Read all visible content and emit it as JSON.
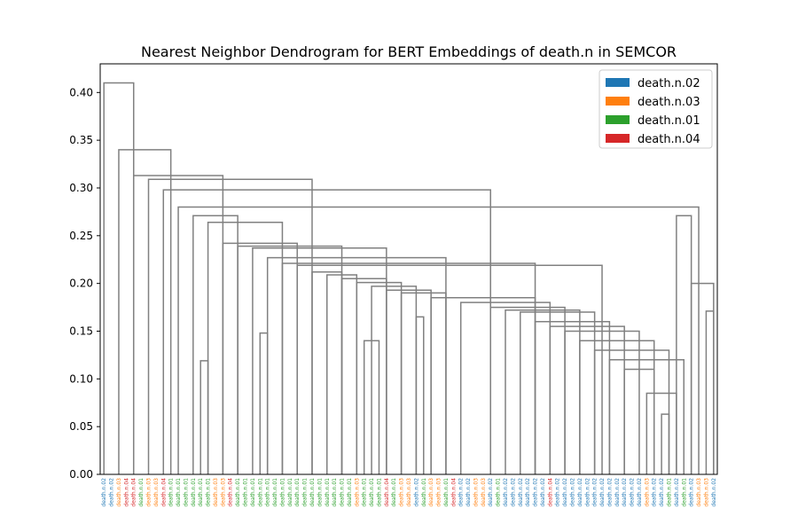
{
  "chart_data": {
    "type": "dendrogram",
    "title": "Nearest Neighbor Dendrogram for BERT Embeddings of death.n in SEMCOR",
    "xlabel": "",
    "ylabel": "",
    "ylim": [
      0,
      0.43
    ],
    "yticks": [
      "0.00",
      "0.05",
      "0.10",
      "0.15",
      "0.20",
      "0.25",
      "0.30",
      "0.35",
      "0.40"
    ],
    "ytick_values": [
      0,
      0.05,
      0.1,
      0.15,
      0.2,
      0.25,
      0.3,
      0.35,
      0.4
    ],
    "link_color": "#808080",
    "legend": {
      "placement": "top-right",
      "entries": [
        {
          "label": "death.n.02",
          "color": "#1f77b4"
        },
        {
          "label": "death.n.03",
          "color": "#ff7f0e"
        },
        {
          "label": "death.n.01",
          "color": "#2ca02c"
        },
        {
          "label": "death.n.04",
          "color": "#d62728"
        }
      ]
    },
    "leaves": [
      "death.n.02",
      "death.n.02",
      "death.n.03",
      "death.n.04",
      "death.n.04",
      "death.n.01",
      "death.n.03",
      "death.n.03",
      "death.n.04",
      "death.n.01",
      "death.n.01",
      "death.n.01",
      "death.n.01",
      "death.n.01",
      "death.n.01",
      "death.n.03",
      "death.n.03",
      "death.n.04",
      "death.n.01",
      "death.n.01",
      "death.n.01",
      "death.n.01",
      "death.n.01",
      "death.n.01",
      "death.n.01",
      "death.n.01",
      "death.n.01",
      "death.n.01",
      "death.n.01",
      "death.n.01",
      "death.n.01",
      "death.n.01",
      "death.n.01",
      "death.n.01",
      "death.n.03",
      "death.n.01",
      "death.n.01",
      "death.n.01",
      "death.n.04",
      "death.n.01",
      "death.n.03",
      "death.n.03",
      "death.n.02",
      "death.n.01",
      "death.n.03",
      "death.n.03",
      "death.n.01",
      "death.n.04",
      "death.n.02",
      "death.n.02",
      "death.n.03",
      "death.n.03",
      "death.n.02",
      "death.n.01",
      "death.n.02",
      "death.n.02",
      "death.n.02",
      "death.n.02",
      "death.n.02",
      "death.n.02",
      "death.n.04",
      "death.n.02",
      "death.n.02",
      "death.n.02",
      "death.n.02",
      "death.n.02",
      "death.n.02",
      "death.n.02",
      "death.n.02",
      "death.n.02",
      "death.n.02",
      "death.n.02",
      "death.n.02",
      "death.n.03",
      "death.n.02",
      "death.n.02",
      "death.n.01",
      "death.n.02",
      "death.n.01",
      "death.n.02",
      "death.n.03",
      "death.n.03",
      "death.n.02"
    ],
    "leaf_colors": {
      "death.n.01": "#2ca02c",
      "death.n.02": "#1f77b4",
      "death.n.03": "#ff7f0e",
      "death.n.04": "#d62728"
    },
    "links": [
      {
        "left": 0,
        "right": 4,
        "height": 0.41
      },
      {
        "left": 2,
        "right": 9,
        "height": 0.34
      },
      {
        "left": 4,
        "right": 16,
        "height": 0.313
      },
      {
        "left": 6,
        "right": 28,
        "height": 0.309
      },
      {
        "left": 8,
        "right": 52,
        "height": 0.298
      },
      {
        "left": 10,
        "right": 80,
        "height": 0.28
      },
      {
        "left": 12,
        "right": 18,
        "height": 0.271
      },
      {
        "left": 14,
        "right": 24,
        "height": 0.264
      },
      {
        "left": 16,
        "right": 26,
        "height": 0.242
      },
      {
        "left": 18,
        "right": 32,
        "height": 0.239
      },
      {
        "left": 20,
        "right": 38,
        "height": 0.237
      },
      {
        "left": 22,
        "right": 46,
        "height": 0.227
      },
      {
        "left": 24,
        "right": 58,
        "height": 0.221
      },
      {
        "left": 26,
        "right": 67,
        "height": 0.219
      },
      {
        "left": 28,
        "right": 32,
        "height": 0.212
      },
      {
        "left": 30,
        "right": 34,
        "height": 0.209
      },
      {
        "left": 32,
        "right": 38,
        "height": 0.205
      },
      {
        "left": 34,
        "right": 40,
        "height": 0.201
      },
      {
        "left": 36,
        "right": 42,
        "height": 0.197
      },
      {
        "left": 38,
        "right": 44,
        "height": 0.193
      },
      {
        "left": 40,
        "right": 46,
        "height": 0.19
      },
      {
        "left": 44,
        "right": 58,
        "height": 0.185
      },
      {
        "left": 48,
        "right": 60,
        "height": 0.18
      },
      {
        "left": 52,
        "right": 62,
        "height": 0.175
      },
      {
        "left": 54,
        "right": 64,
        "height": 0.172
      },
      {
        "left": 56,
        "right": 66,
        "height": 0.17
      },
      {
        "left": 58,
        "right": 68,
        "height": 0.16
      },
      {
        "left": 60,
        "right": 70,
        "height": 0.155
      },
      {
        "left": 62,
        "right": 72,
        "height": 0.15
      },
      {
        "left": 64,
        "right": 74,
        "height": 0.14
      },
      {
        "left": 66,
        "right": 76,
        "height": 0.13
      },
      {
        "left": 68,
        "right": 78,
        "height": 0.12
      },
      {
        "left": 70,
        "right": 74,
        "height": 0.11
      },
      {
        "left": 73,
        "right": 77,
        "height": 0.085
      },
      {
        "left": 75,
        "right": 76,
        "height": 0.063
      },
      {
        "left": 77,
        "right": 79,
        "height": 0.271
      },
      {
        "left": 79,
        "right": 82,
        "height": 0.2
      },
      {
        "left": 81,
        "right": 82,
        "height": 0.171
      },
      {
        "left": 13,
        "right": 14,
        "height": 0.119
      },
      {
        "left": 21,
        "right": 22,
        "height": 0.148
      },
      {
        "left": 42,
        "right": 43,
        "height": 0.165
      },
      {
        "left": 35,
        "right": 37,
        "height": 0.14
      }
    ]
  }
}
